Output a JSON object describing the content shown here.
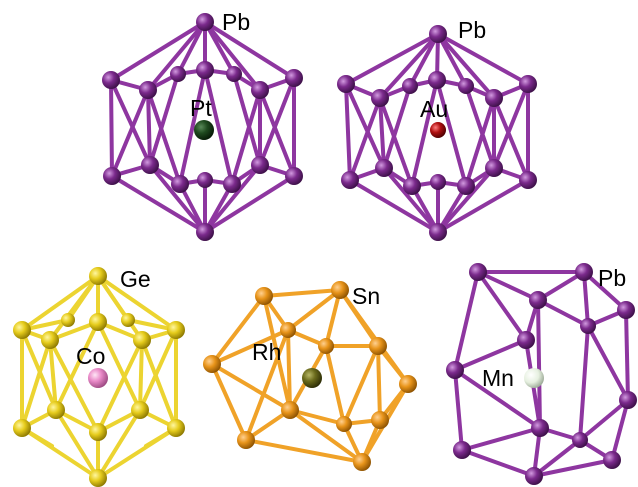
{
  "clusters": [
    {
      "id": "pt-pb12",
      "center": "Pt",
      "cage": "Pb",
      "cage_color": "#7b2a8c",
      "center_color": "#1f4a1f",
      "bond_color": "#8e36a0",
      "geometry": "icosahedron-a"
    },
    {
      "id": "au-pb12",
      "center": "Au",
      "cage": "Pb",
      "cage_color": "#7b2a8c",
      "center_color": "#b01010",
      "bond_color": "#8e36a0",
      "geometry": "icosahedron-a"
    },
    {
      "id": "co-ge12",
      "center": "Co",
      "cage": "Ge",
      "cage_color": "#e0c81a",
      "center_color": "#e98ac8",
      "bond_color": "#ecd431",
      "geometry": "icosahedron-b"
    },
    {
      "id": "rh-sn12",
      "center": "Rh",
      "cage": "Sn",
      "cage_color": "#e8941a",
      "center_color": "#6b6b1c",
      "bond_color": "#f0a228",
      "geometry": "icosahedron-c"
    },
    {
      "id": "mn-pb12",
      "center": "Mn",
      "cage": "Pb",
      "cage_color": "#7b2a8c",
      "center_color": "#e6f0e0",
      "bond_color": "#8e36a0",
      "geometry": "polyhedron-d"
    }
  ]
}
